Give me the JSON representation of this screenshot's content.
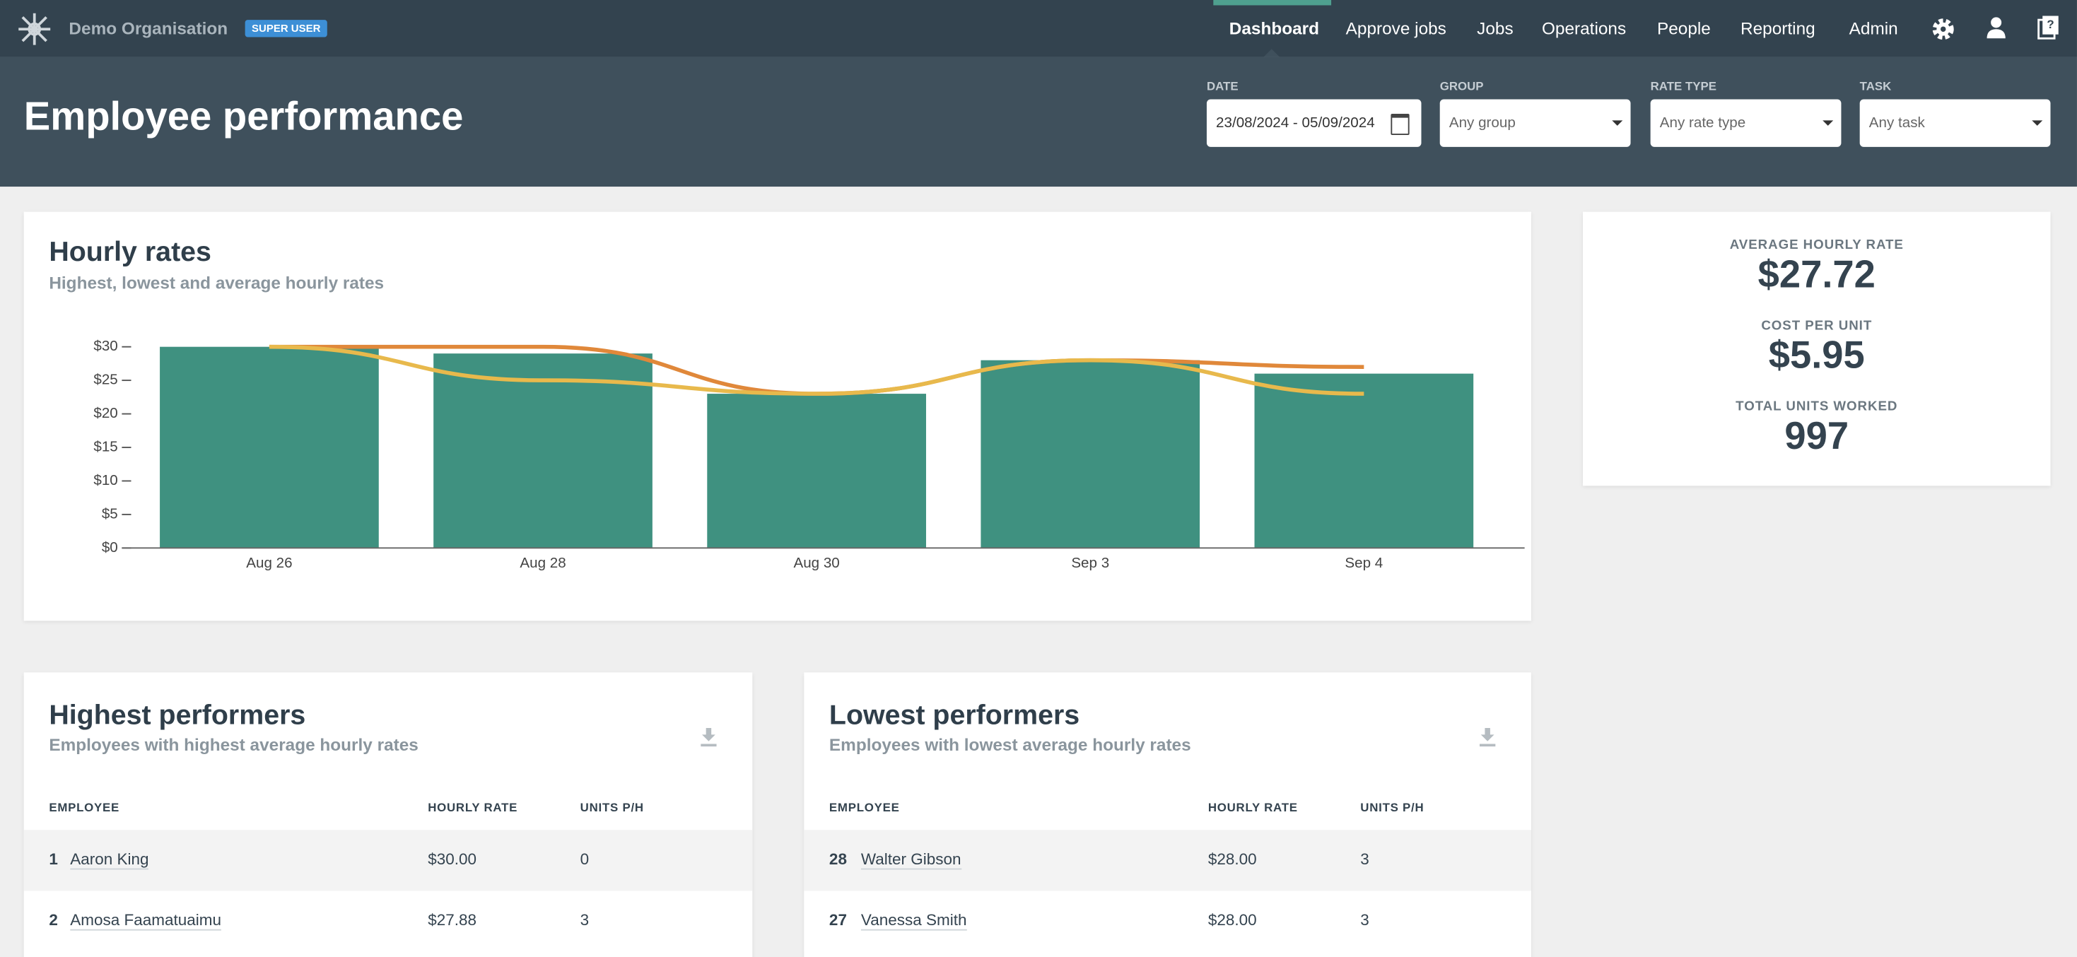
{
  "nav": {
    "org": "Demo Organisation",
    "badge": "SUPER USER",
    "links": [
      "Dashboard",
      "Approve jobs",
      "Jobs",
      "Operations",
      "People",
      "Reporting",
      "Admin"
    ]
  },
  "header": {
    "title": "Employee performance",
    "filters": [
      {
        "label": "DATE",
        "value": "23/08/2024 - 05/09/2024"
      },
      {
        "label": "GROUP",
        "value": "Any group"
      },
      {
        "label": "RATE TYPE",
        "value": "Any rate type"
      },
      {
        "label": "TASK",
        "value": "Any task"
      }
    ]
  },
  "hourly_rates_chart": {
    "type": "bar",
    "title": "Hourly rates",
    "subtitle": "Highest, lowest and average hourly rates",
    "categories": [
      "Aug 26",
      "Aug 28",
      "Aug 30",
      "Sep 3",
      "Sep 4"
    ],
    "series": [
      {
        "type": "bar",
        "color": "#3f9180",
        "values": [
          30,
          29,
          23,
          28,
          26
        ]
      },
      {
        "type": "line",
        "color": "#e0883a",
        "values": [
          30,
          30,
          23,
          28,
          27
        ]
      },
      {
        "type": "line",
        "color": "#e8b94c",
        "values": [
          30,
          25,
          23,
          28,
          23
        ]
      }
    ],
    "ylim": [
      0,
      30
    ],
    "yticks": [
      {
        "value": 0,
        "label": "$0"
      },
      {
        "value": 5,
        "label": "$5"
      },
      {
        "value": 10,
        "label": "$10"
      },
      {
        "value": 15,
        "label": "$15"
      },
      {
        "value": 20,
        "label": "$20"
      },
      {
        "value": 25,
        "label": "$25"
      },
      {
        "value": 30,
        "label": "$30"
      }
    ],
    "grid": false
  },
  "stats": [
    {
      "label": "AVERAGE HOURLY RATE",
      "value": "$27.72"
    },
    {
      "label": "COST PER UNIT",
      "value": "$5.95"
    },
    {
      "label": "TOTAL UNITS WORKED",
      "value": "997"
    }
  ],
  "highest": {
    "title": "Highest performers",
    "subtitle": "Employees with highest average hourly rates",
    "columns": [
      "EMPLOYEE",
      "HOURLY RATE",
      "UNITS P/H"
    ],
    "rows": [
      [
        "1",
        "Aaron King",
        "$30.00",
        "0"
      ],
      [
        "2",
        "Amosa Faamatuaimu",
        "$27.88",
        "3"
      ]
    ]
  },
  "lowest": {
    "title": "Lowest performers",
    "subtitle": "Employees with lowest average hourly rates",
    "columns": [
      "EMPLOYEE",
      "HOURLY RATE",
      "UNITS P/H"
    ],
    "rows": [
      [
        "28",
        "Walter Gibson",
        "$28.00",
        "3"
      ],
      [
        "27",
        "Vanessa Smith",
        "$28.00",
        "3"
      ]
    ]
  }
}
